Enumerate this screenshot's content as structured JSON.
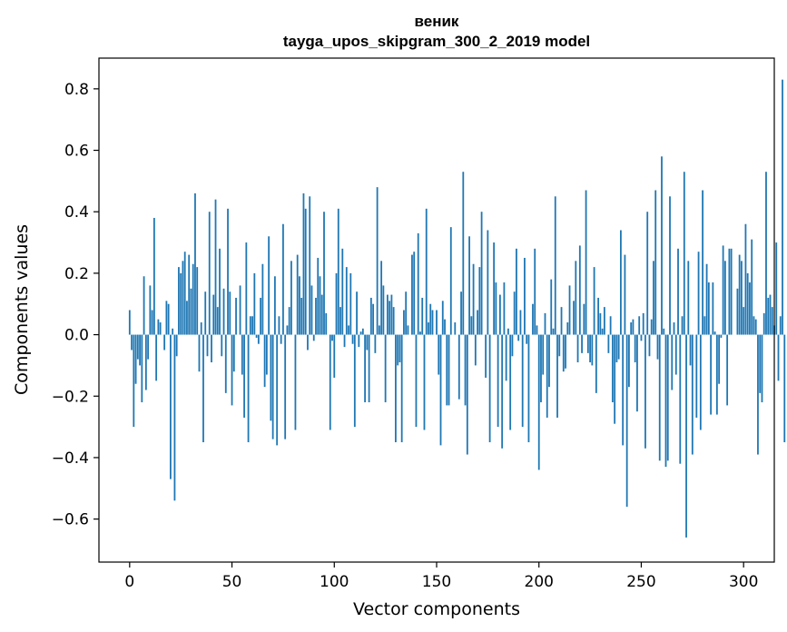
{
  "chart_data": {
    "type": "bar",
    "title": "веник",
    "subtitle": "tayga_upos_skipgram_300_2_2019 model",
    "xlabel": "Vector components",
    "ylabel": "Components values",
    "xlim": [
      -15,
      315
    ],
    "ylim": [
      -0.74,
      0.9
    ],
    "xticks": [
      0,
      50,
      100,
      150,
      200,
      250,
      300
    ],
    "xtick_labels": [
      "0",
      "50",
      "100",
      "150",
      "200",
      "250",
      "300"
    ],
    "yticks": [
      -0.6,
      -0.4,
      -0.2,
      0.0,
      0.2,
      0.4,
      0.6,
      0.8
    ],
    "ytick_labels": [
      "−0.6",
      "−0.4",
      "−0.2",
      "0.0",
      "0.2",
      "0.4",
      "0.6",
      "0.8"
    ],
    "grid": false,
    "bar_color": "#1f77b4",
    "x_start": 0,
    "values": [
      0.08,
      -0.05,
      -0.3,
      -0.16,
      -0.08,
      -0.1,
      -0.22,
      0.19,
      -0.18,
      -0.08,
      0.16,
      0.08,
      0.38,
      -0.15,
      0.05,
      0.04,
      0.0,
      -0.05,
      0.11,
      0.1,
      -0.47,
      0.02,
      -0.54,
      -0.07,
      0.22,
      0.2,
      0.24,
      0.27,
      0.11,
      0.26,
      0.15,
      0.23,
      0.46,
      0.22,
      -0.12,
      0.04,
      -0.35,
      0.14,
      -0.07,
      0.4,
      -0.09,
      0.13,
      0.44,
      0.09,
      0.28,
      -0.07,
      0.15,
      -0.19,
      0.41,
      0.14,
      -0.23,
      -0.12,
      0.12,
      0.0,
      0.16,
      -0.13,
      -0.27,
      0.3,
      -0.35,
      0.06,
      0.06,
      0.2,
      -0.01,
      -0.03,
      0.12,
      0.23,
      -0.17,
      -0.13,
      0.32,
      -0.28,
      -0.34,
      0.19,
      -0.36,
      0.06,
      -0.03,
      0.36,
      -0.34,
      0.03,
      0.09,
      0.24,
      0.0,
      -0.31,
      0.26,
      0.19,
      0.12,
      0.46,
      0.41,
      -0.05,
      0.45,
      0.16,
      -0.02,
      0.12,
      0.25,
      0.19,
      0.13,
      0.4,
      0.07,
      0.0,
      -0.31,
      -0.02,
      -0.14,
      0.2,
      0.41,
      0.09,
      0.28,
      -0.04,
      0.22,
      0.03,
      0.2,
      -0.03,
      -0.3,
      0.14,
      -0.04,
      0.01,
      0.02,
      -0.22,
      -0.05,
      -0.22,
      0.12,
      0.1,
      -0.06,
      0.48,
      0.03,
      0.24,
      0.16,
      -0.22,
      0.13,
      0.11,
      0.13,
      0.09,
      -0.35,
      -0.1,
      -0.09,
      -0.35,
      0.08,
      0.14,
      0.03,
      0.0,
      0.26,
      0.27,
      -0.3,
      0.33,
      0.01,
      0.12,
      -0.31,
      0.41,
      0.04,
      0.1,
      0.08,
      0.0,
      0.08,
      -0.13,
      -0.36,
      0.11,
      0.05,
      -0.23,
      -0.23,
      0.35,
      0.0,
      0.04,
      0.0,
      -0.21,
      0.14,
      0.53,
      -0.23,
      -0.39,
      0.32,
      0.06,
      0.23,
      -0.1,
      0.08,
      0.22,
      0.4,
      0.0,
      -0.14,
      0.34,
      -0.35,
      0.0,
      0.3,
      0.17,
      -0.3,
      0.13,
      -0.37,
      0.17,
      -0.15,
      0.02,
      -0.31,
      -0.07,
      0.14,
      0.28,
      -0.02,
      0.08,
      -0.3,
      0.25,
      -0.03,
      -0.35,
      0.0,
      0.1,
      0.28,
      0.03,
      -0.44,
      -0.22,
      -0.13,
      0.07,
      -0.27,
      -0.17,
      0.18,
      0.02,
      0.45,
      -0.27,
      -0.07,
      0.09,
      -0.12,
      -0.11,
      0.04,
      0.16,
      0.0,
      0.11,
      0.24,
      -0.09,
      0.29,
      -0.06,
      0.1,
      0.47,
      -0.06,
      -0.09,
      -0.1,
      0.22,
      -0.19,
      0.12,
      0.07,
      0.02,
      0.09,
      0.0,
      -0.06,
      0.06,
      -0.22,
      -0.29,
      -0.09,
      -0.08,
      0.34,
      -0.36,
      0.26,
      -0.56,
      -0.17,
      0.04,
      0.05,
      -0.09,
      -0.25,
      0.06,
      -0.02,
      0.07,
      -0.37,
      0.4,
      -0.07,
      0.05,
      0.24,
      0.47,
      -0.08,
      -0.41,
      0.58,
      0.02,
      -0.43,
      -0.41,
      0.45,
      -0.18,
      0.04,
      -0.13,
      0.28,
      -0.42,
      0.06,
      0.53,
      -0.66,
      0.24,
      -0.1,
      -0.39,
      0.0,
      -0.27,
      0.27,
      -0.31,
      0.47,
      0.06,
      0.23,
      0.17,
      -0.26,
      0.17,
      0.01,
      -0.26,
      -0.16,
      -0.01,
      0.29,
      0.24,
      -0.23,
      0.28,
      0.28,
      0.0,
      0.0,
      0.15,
      0.26,
      0.24,
      0.09,
      0.36,
      0.2,
      0.17,
      0.31,
      0.06,
      0.05,
      -0.39,
      -0.19,
      -0.22,
      0.07,
      0.53,
      0.12,
      0.13,
      0.09,
      0.03,
      0.3,
      -0.15,
      0.06,
      0.83,
      -0.35
    ]
  }
}
